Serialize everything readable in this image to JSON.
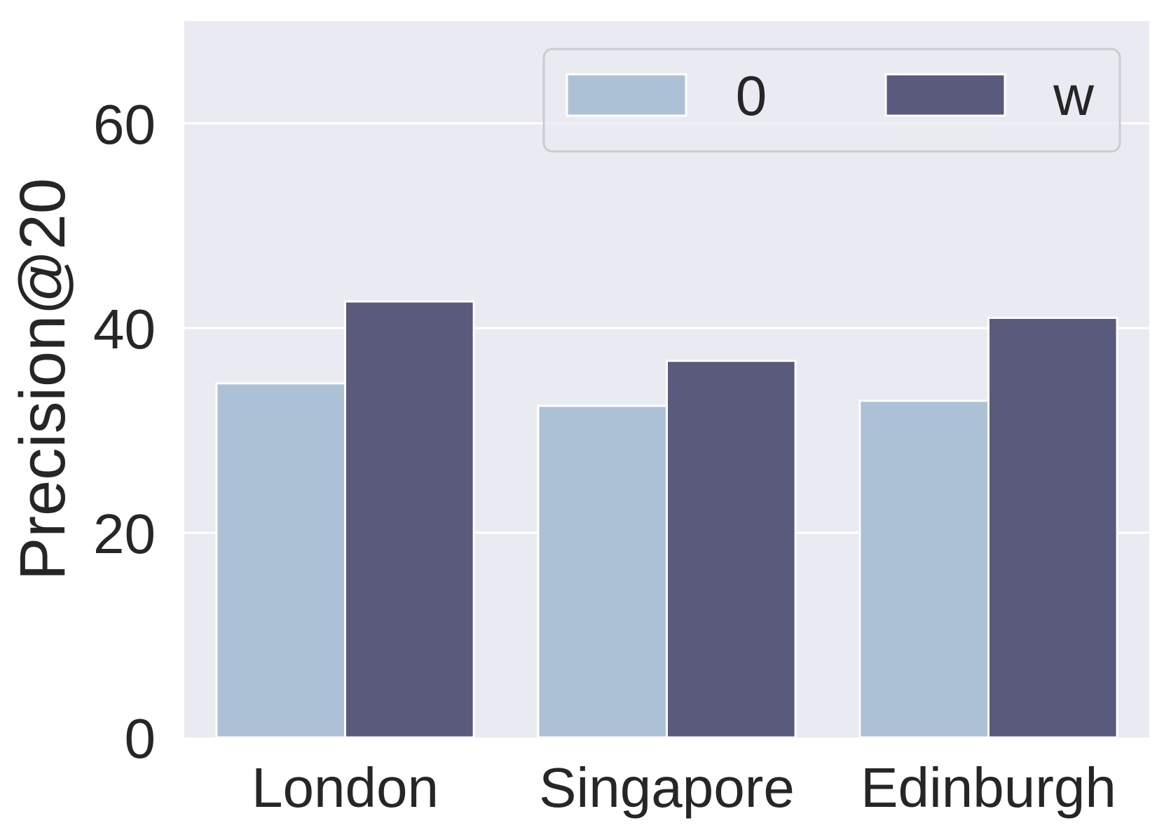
{
  "chart_data": {
    "type": "bar",
    "categories": [
      "London",
      "Singapore",
      "Edinburgh"
    ],
    "series": [
      {
        "name": "0",
        "values": [
          34.6,
          32.4,
          32.9
        ],
        "color": "#adc1d6"
      },
      {
        "name": "w",
        "values": [
          42.6,
          36.8,
          41.0
        ],
        "color": "#5a5a7d"
      }
    ],
    "xlabel": "",
    "ylabel": "Precision@20",
    "ylim": [
      0,
      70
    ],
    "yticks": [
      0,
      20,
      40,
      60
    ],
    "grid": true,
    "legend": {
      "placement": "top-right",
      "columns": 2
    },
    "colors": {
      "plot_background": "#eaeaf2",
      "grid": "#ffffff",
      "text": "#262626",
      "legend_border": "#cccccc"
    }
  }
}
